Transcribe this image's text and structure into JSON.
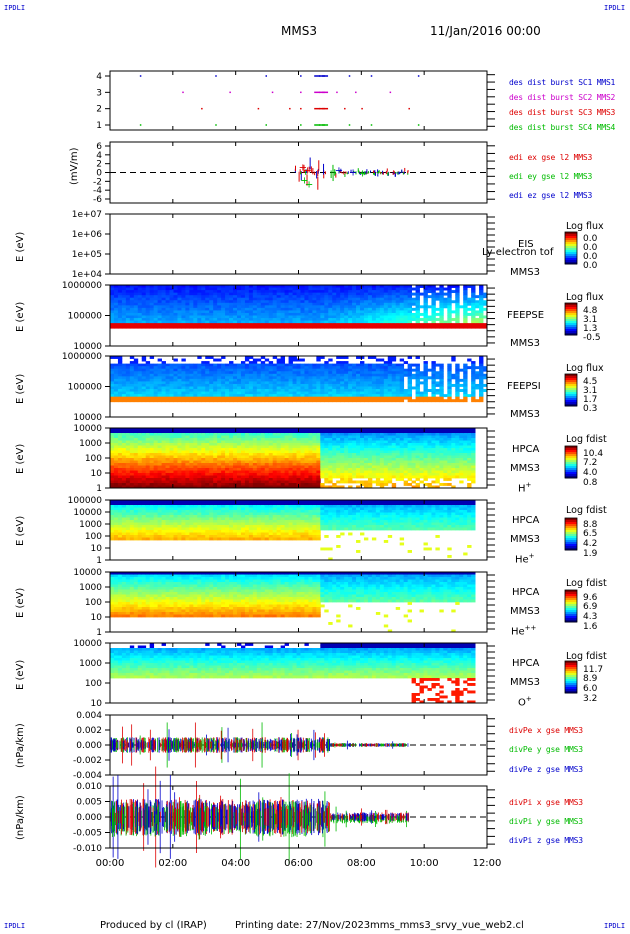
{
  "corners": {
    "tl": "IPDLI",
    "tr": "IPDLI",
    "bl": "IPDLI",
    "br": "IPDLI"
  },
  "header": {
    "mission": "MMS3",
    "date": "11/Jan/2016 00:00"
  },
  "footer": {
    "produced": "Produced by cl (IRAP)",
    "printing": "Printing date: 27/Nov/2023",
    "file": "mms_mms3_srvy_vue_web2.cl"
  },
  "colors": {
    "red": "#dd0000",
    "magenta": "#cc00cc",
    "green": "#00bb00",
    "blue": "#0000cc",
    "darkblue": "#000099"
  },
  "chart_data": [
    {
      "type": "scatter",
      "id": "burst",
      "yticks": [
        "4",
        "3",
        "2",
        "1"
      ],
      "legend": [
        {
          "label": "des dist burst SC1 MMS1",
          "color": "#0000cc"
        },
        {
          "label": "des dist burst SC2 MMS2",
          "color": "#cc00cc"
        },
        {
          "label": "des dist burst SC3 MMS3",
          "color": "#dd0000"
        },
        {
          "label": "des dist burst SC4 MMS4",
          "color": "#00bb00"
        }
      ],
      "bursts_hours": [
        0.95,
        2.3,
        2.9,
        3.35,
        3.8,
        4.7,
        4.95,
        5.15,
        5.7,
        6.05,
        6.5,
        6.65,
        6.75,
        7.2,
        7.45,
        7.6,
        7.8,
        8.0,
        8.3,
        8.9,
        9.5,
        9.8
      ]
    },
    {
      "type": "line",
      "id": "edi",
      "ylabel": "(mV/m)",
      "yticks": [
        "6",
        "4",
        "2",
        "0",
        "-2",
        "-4",
        "-6"
      ],
      "legend": [
        {
          "label": "edi ex gse l2 MMS3",
          "color": "#dd0000"
        },
        {
          "label": "edi ey gse l2 MMS3",
          "color": "#00bb00"
        },
        {
          "label": "edi ez gse l2 MMS3",
          "color": "#0000cc"
        }
      ]
    },
    {
      "type": "heatmap",
      "id": "eis",
      "ylabel": "E (eV)",
      "yticks": [
        "1e+07",
        "1e+06",
        "1e+05",
        "1e+04"
      ],
      "labels": [
        "EIS",
        "MMS3"
      ],
      "overlay": "Ly electron tof",
      "cbar_title": "Log flux",
      "cbar_values": [
        "0.0",
        "0.0",
        "0.0",
        "0.0"
      ]
    },
    {
      "type": "heatmap",
      "id": "feepse",
      "ylabel": "E (eV)",
      "yticks": [
        "1000000",
        "100000",
        "10000"
      ],
      "labels": [
        "FEEPSE",
        "MMS3"
      ],
      "cbar_title": "Log flux",
      "cbar_values": [
        "4.8",
        "3.1",
        "1.3",
        "-0.5"
      ]
    },
    {
      "type": "heatmap",
      "id": "feepsi",
      "ylabel": "E (eV)",
      "yticks": [
        "1000000",
        "100000",
        "10000"
      ],
      "labels": [
        "FEEPSI",
        "MMS3"
      ],
      "cbar_title": "Log flux",
      "cbar_values": [
        "4.5",
        "3.1",
        "1.7",
        "0.3"
      ]
    },
    {
      "type": "heatmap",
      "id": "hpca_h",
      "ylabel": "E (eV)",
      "yticks": [
        "10000",
        "1000",
        "100",
        "10",
        "1"
      ],
      "labels": [
        "HPCA",
        "MMS3"
      ],
      "species": "H",
      "species_sup": "+",
      "cbar_title": "Log fdist",
      "cbar_values": [
        "10.4",
        "7.2",
        "4.0",
        "0.8"
      ]
    },
    {
      "type": "heatmap",
      "id": "hpca_he",
      "ylabel": "E (eV)",
      "yticks": [
        "100000",
        "10000",
        "1000",
        "100",
        "10",
        "1"
      ],
      "labels": [
        "HPCA",
        "MMS3"
      ],
      "species": "He",
      "species_sup": "+",
      "cbar_title": "Log fdist",
      "cbar_values": [
        "8.8",
        "6.5",
        "4.2",
        "1.9"
      ]
    },
    {
      "type": "heatmap",
      "id": "hpca_he2",
      "ylabel": "E (eV)",
      "yticks": [
        "10000",
        "1000",
        "100",
        "10",
        "1"
      ],
      "labels": [
        "HPCA",
        "MMS3"
      ],
      "species": "He",
      "species_sup": "++",
      "cbar_title": "Log fdist",
      "cbar_values": [
        "9.6",
        "6.9",
        "4.3",
        "1.6"
      ]
    },
    {
      "type": "heatmap",
      "id": "hpca_o",
      "ylabel": "E (eV)",
      "yticks": [
        "10000",
        "1000",
        "100",
        "10"
      ],
      "labels": [
        "HPCA",
        "MMS3"
      ],
      "species": "O",
      "species_sup": "+",
      "cbar_title": "Log fdist",
      "cbar_values": [
        "11.7",
        "8.9",
        "6.0",
        "3.2"
      ]
    },
    {
      "type": "line",
      "id": "divpe",
      "ylabel": "(nPa/km)",
      "yticks": [
        "0.004",
        "0.002",
        "0.000",
        "-0.002",
        "-0.004"
      ],
      "legend": [
        {
          "label": "divPe x gse MMS3",
          "color": "#dd0000"
        },
        {
          "label": "divPe y gse MMS3",
          "color": "#00bb00"
        },
        {
          "label": "divPe z gse MMS3",
          "color": "#0000cc"
        }
      ]
    },
    {
      "type": "line",
      "id": "divpi",
      "ylabel": "(nPa/km)",
      "yticks": [
        "0.010",
        "0.005",
        "0.000",
        "-0.005",
        "-0.010"
      ],
      "legend": [
        {
          "label": "divPi x gse MMS3",
          "color": "#dd0000"
        },
        {
          "label": "divPi y gse MMS3",
          "color": "#00bb00"
        },
        {
          "label": "divPi z gse MMS3",
          "color": "#0000cc"
        }
      ]
    }
  ],
  "xaxis": {
    "ticks": [
      "00:00",
      "02:00",
      "04:00",
      "06:00",
      "08:00",
      "10:00",
      "12:00"
    ],
    "range_hours": [
      0,
      12
    ]
  }
}
